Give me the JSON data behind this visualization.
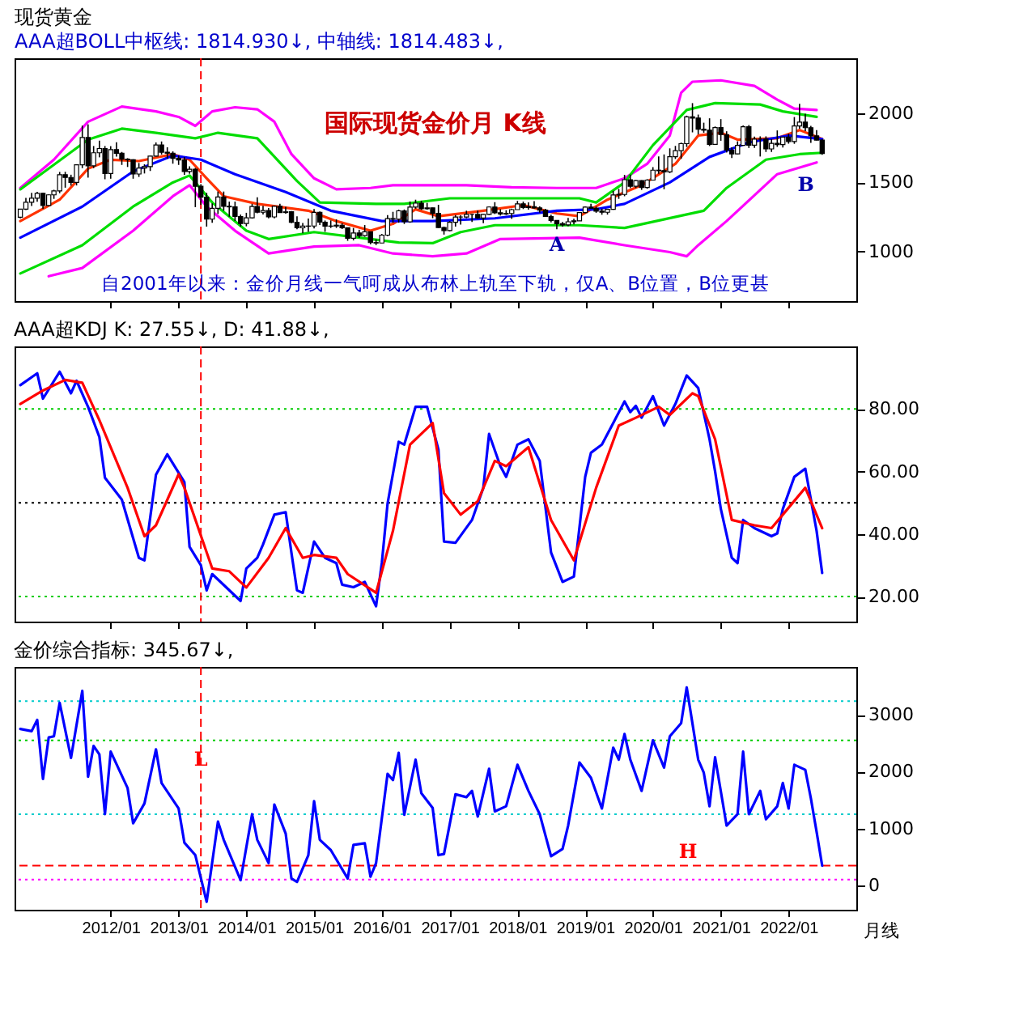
{
  "chart_data": [
    {
      "type": "candlestick",
      "title": "现货黄金",
      "subtitle": "AAA超BOLL中枢线: 1814.930↓, 中轴线: 1814.483↓,",
      "x": [
        "2010-09",
        "2010-10",
        "2010-11",
        "2010-12",
        "2011-01",
        "2011-02",
        "2011-03",
        "2011-04",
        "2011-05",
        "2011-06",
        "2011-07",
        "2011-08",
        "2011-09",
        "2011-10",
        "2011-11",
        "2011-12",
        "2012-01",
        "2012-02",
        "2012-03",
        "2012-04",
        "2012-05",
        "2012-06",
        "2012-07",
        "2012-08",
        "2012-09",
        "2012-10",
        "2012-11",
        "2012-12",
        "2013-01",
        "2013-02",
        "2013-03",
        "2013-04",
        "2013-05",
        "2013-06",
        "2013-07",
        "2013-08",
        "2013-09",
        "2013-10",
        "2013-11",
        "2013-12",
        "2014-01",
        "2014-02",
        "2014-03",
        "2014-04",
        "2014-05",
        "2014-06",
        "2014-07",
        "2014-08",
        "2014-09",
        "2014-10",
        "2014-11",
        "2014-12",
        "2015-01",
        "2015-02",
        "2015-03",
        "2015-04",
        "2015-05",
        "2015-06",
        "2015-07",
        "2015-08",
        "2015-09",
        "2015-10",
        "2015-11",
        "2015-12",
        "2016-01",
        "2016-02",
        "2016-03",
        "2016-04",
        "2016-05",
        "2016-06",
        "2016-07",
        "2016-08",
        "2016-09",
        "2016-10",
        "2016-11",
        "2016-12",
        "2017-01",
        "2017-02",
        "2017-03",
        "2017-04",
        "2017-05",
        "2017-06",
        "2017-07",
        "2017-08",
        "2017-09",
        "2017-10",
        "2017-11",
        "2017-12",
        "2018-01",
        "2018-02",
        "2018-03",
        "2018-04",
        "2018-05",
        "2018-06",
        "2018-07",
        "2018-08",
        "2018-09",
        "2018-10",
        "2018-11",
        "2018-12",
        "2019-01",
        "2019-02",
        "2019-03",
        "2019-04",
        "2019-05",
        "2019-06",
        "2019-07",
        "2019-08",
        "2019-09",
        "2019-10",
        "2019-11",
        "2019-12",
        "2020-01",
        "2020-02",
        "2020-03",
        "2020-04",
        "2020-05",
        "2020-06",
        "2020-07",
        "2020-08",
        "2020-09",
        "2020-10",
        "2020-11",
        "2020-12",
        "2021-01",
        "2021-02",
        "2021-03",
        "2021-04",
        "2021-05",
        "2021-06",
        "2021-07",
        "2021-08",
        "2021-09",
        "2021-10",
        "2021-11",
        "2021-12",
        "2022-01",
        "2022-02",
        "2022-03",
        "2022-04",
        "2022-05",
        "2022-06",
        "2022-07"
      ],
      "ohlc": [
        [
          1248,
          1308,
          1240,
          1307
        ],
        [
          1307,
          1388,
          1300,
          1357
        ],
        [
          1357,
          1424,
          1330,
          1386
        ],
        [
          1386,
          1432,
          1360,
          1421
        ],
        [
          1421,
          1424,
          1309,
          1333
        ],
        [
          1333,
          1413,
          1330,
          1410
        ],
        [
          1410,
          1447,
          1381,
          1439
        ],
        [
          1439,
          1576,
          1422,
          1556
        ],
        [
          1556,
          1577,
          1462,
          1536
        ],
        [
          1536,
          1556,
          1477,
          1500
        ],
        [
          1500,
          1632,
          1478,
          1628
        ],
        [
          1628,
          1912,
          1604,
          1826
        ],
        [
          1826,
          1921,
          1535,
          1620
        ],
        [
          1620,
          1764,
          1604,
          1715
        ],
        [
          1715,
          1803,
          1682,
          1746
        ],
        [
          1746,
          1764,
          1523,
          1565
        ],
        [
          1565,
          1763,
          1527,
          1738
        ],
        [
          1738,
          1791,
          1687,
          1711
        ],
        [
          1711,
          1721,
          1627,
          1669
        ],
        [
          1669,
          1676,
          1612,
          1664
        ],
        [
          1664,
          1668,
          1527,
          1561
        ],
        [
          1561,
          1641,
          1540,
          1604
        ],
        [
          1604,
          1632,
          1565,
          1615
        ],
        [
          1615,
          1692,
          1583,
          1691
        ],
        [
          1691,
          1790,
          1687,
          1772
        ],
        [
          1772,
          1797,
          1702,
          1719
        ],
        [
          1719,
          1755,
          1672,
          1712
        ],
        [
          1712,
          1725,
          1636,
          1675
        ],
        [
          1675,
          1695,
          1627,
          1663
        ],
        [
          1663,
          1684,
          1555,
          1579
        ],
        [
          1579,
          1617,
          1563,
          1596
        ],
        [
          1596,
          1605,
          1321,
          1472
        ],
        [
          1472,
          1488,
          1338,
          1393
        ],
        [
          1393,
          1424,
          1180,
          1234
        ],
        [
          1234,
          1348,
          1207,
          1313
        ],
        [
          1313,
          1434,
          1271,
          1395
        ],
        [
          1395,
          1434,
          1295,
          1327
        ],
        [
          1327,
          1361,
          1251,
          1323
        ],
        [
          1323,
          1361,
          1221,
          1253
        ],
        [
          1253,
          1267,
          1180,
          1202
        ],
        [
          1202,
          1280,
          1182,
          1244
        ],
        [
          1244,
          1345,
          1238,
          1326
        ],
        [
          1326,
          1392,
          1277,
          1284
        ],
        [
          1284,
          1331,
          1268,
          1296
        ],
        [
          1296,
          1315,
          1240,
          1250
        ],
        [
          1250,
          1332,
          1240,
          1327
        ],
        [
          1327,
          1345,
          1281,
          1282
        ],
        [
          1282,
          1323,
          1273,
          1287
        ],
        [
          1287,
          1293,
          1205,
          1211
        ],
        [
          1211,
          1255,
          1161,
          1171
        ],
        [
          1171,
          1206,
          1131,
          1183
        ],
        [
          1183,
          1239,
          1142,
          1184
        ],
        [
          1184,
          1307,
          1167,
          1283
        ],
        [
          1283,
          1289,
          1192,
          1212
        ],
        [
          1212,
          1224,
          1142,
          1183
        ],
        [
          1183,
          1225,
          1170,
          1184
        ],
        [
          1184,
          1232,
          1170,
          1190
        ],
        [
          1190,
          1205,
          1162,
          1172
        ],
        [
          1172,
          1174,
          1077,
          1095
        ],
        [
          1095,
          1170,
          1080,
          1134
        ],
        [
          1134,
          1157,
          1098,
          1114
        ],
        [
          1114,
          1191,
          1106,
          1142
        ],
        [
          1142,
          1142,
          1052,
          1064
        ],
        [
          1064,
          1088,
          1046,
          1061
        ],
        [
          1061,
          1127,
          1061,
          1118
        ],
        [
          1118,
          1263,
          1111,
          1238
        ],
        [
          1238,
          1287,
          1208,
          1234
        ],
        [
          1234,
          1303,
          1208,
          1294
        ],
        [
          1294,
          1304,
          1199,
          1215
        ],
        [
          1215,
          1362,
          1208,
          1321
        ],
        [
          1321,
          1375,
          1310,
          1350
        ],
        [
          1350,
          1367,
          1301,
          1309
        ],
        [
          1309,
          1352,
          1302,
          1316
        ],
        [
          1316,
          1317,
          1241,
          1276
        ],
        [
          1276,
          1338,
          1171,
          1173
        ],
        [
          1173,
          1180,
          1122,
          1151
        ],
        [
          1151,
          1220,
          1146,
          1211
        ],
        [
          1211,
          1264,
          1180,
          1249
        ],
        [
          1249,
          1262,
          1195,
          1249
        ],
        [
          1249,
          1295,
          1241,
          1268
        ],
        [
          1268,
          1270,
          1214,
          1268
        ],
        [
          1268,
          1296,
          1236,
          1242
        ],
        [
          1242,
          1272,
          1205,
          1269
        ],
        [
          1269,
          1326,
          1264,
          1322
        ],
        [
          1322,
          1357,
          1271,
          1280
        ],
        [
          1280,
          1306,
          1260,
          1271
        ],
        [
          1271,
          1299,
          1264,
          1275
        ],
        [
          1275,
          1310,
          1236,
          1303
        ],
        [
          1303,
          1366,
          1303,
          1345
        ],
        [
          1345,
          1361,
          1307,
          1318
        ],
        [
          1318,
          1356,
          1303,
          1325
        ],
        [
          1325,
          1365,
          1310,
          1315
        ],
        [
          1315,
          1326,
          1281,
          1299
        ],
        [
          1299,
          1309,
          1251,
          1253
        ],
        [
          1253,
          1266,
          1211,
          1224
        ],
        [
          1224,
          1224,
          1160,
          1201
        ],
        [
          1201,
          1214,
          1180,
          1192
        ],
        [
          1192,
          1243,
          1182,
          1215
        ],
        [
          1215,
          1237,
          1196,
          1222
        ],
        [
          1222,
          1284,
          1221,
          1282
        ],
        [
          1282,
          1326,
          1276,
          1321
        ],
        [
          1321,
          1346,
          1311,
          1313
        ],
        [
          1313,
          1325,
          1280,
          1292
        ],
        [
          1292,
          1310,
          1266,
          1284
        ],
        [
          1284,
          1306,
          1267,
          1305
        ],
        [
          1305,
          1439,
          1302,
          1409
        ],
        [
          1409,
          1453,
          1381,
          1413
        ],
        [
          1413,
          1555,
          1400,
          1520
        ],
        [
          1520,
          1557,
          1459,
          1472
        ],
        [
          1472,
          1517,
          1459,
          1513
        ],
        [
          1513,
          1516,
          1446,
          1464
        ],
        [
          1464,
          1524,
          1454,
          1517
        ],
        [
          1517,
          1611,
          1517,
          1589
        ],
        [
          1589,
          1689,
          1563,
          1585
        ],
        [
          1585,
          1703,
          1451,
          1577
        ],
        [
          1577,
          1747,
          1568,
          1686
        ],
        [
          1686,
          1765,
          1670,
          1730
        ],
        [
          1730,
          1789,
          1671,
          1781
        ],
        [
          1781,
          1984,
          1757,
          1975
        ],
        [
          1975,
          2075,
          1863,
          1967
        ],
        [
          1967,
          1992,
          1849,
          1886
        ],
        [
          1886,
          1933,
          1860,
          1879
        ],
        [
          1879,
          1965,
          1764,
          1776
        ],
        [
          1776,
          1906,
          1776,
          1898
        ],
        [
          1898,
          1959,
          1802,
          1847
        ],
        [
          1847,
          1871,
          1717,
          1734
        ],
        [
          1734,
          1755,
          1677,
          1707
        ],
        [
          1707,
          1798,
          1705,
          1769
        ],
        [
          1769,
          1913,
          1766,
          1903
        ],
        [
          1903,
          1916,
          1750,
          1770
        ],
        [
          1770,
          1832,
          1750,
          1814
        ],
        [
          1814,
          1834,
          1688,
          1814
        ],
        [
          1814,
          1834,
          1721,
          1743
        ],
        [
          1743,
          1814,
          1721,
          1783
        ],
        [
          1783,
          1877,
          1758,
          1774
        ],
        [
          1774,
          1831,
          1753,
          1829
        ],
        [
          1829,
          1853,
          1781,
          1797
        ],
        [
          1797,
          1974,
          1780,
          1909
        ],
        [
          1909,
          2070,
          1890,
          1937
        ],
        [
          1937,
          1998,
          1872,
          1897
        ],
        [
          1897,
          1910,
          1787,
          1837
        ],
        [
          1837,
          1879,
          1805,
          1807
        ],
        [
          1807,
          1814,
          1700,
          1710
        ]
      ],
      "color": "#000000",
      "series": [
        {
          "type": "line",
          "color": "#ff00ff",
          "x": [
            "2010-09",
            "2011-03",
            "2011-09",
            "2012-03",
            "2012-09",
            "2013-01",
            "2013-04",
            "2013-07",
            "2013-11",
            "2014-03",
            "2014-06",
            "2014-09",
            "2015-01",
            "2015-05",
            "2015-11",
            "2016-03",
            "2016-10",
            "2017-04",
            "2017-12",
            "2018-08",
            "2019-03",
            "2019-08",
            "2019-12",
            "2020-04",
            "2020-06",
            "2020-08",
            "2021-01",
            "2021-07",
            "2021-11",
            "2022-02",
            "2022-06"
          ],
          "values": [
            1460,
            1665,
            1940,
            2050,
            2015,
            1975,
            1910,
            2015,
            2045,
            2030,
            1940,
            1705,
            1530,
            1450,
            1460,
            1480,
            1480,
            1480,
            1465,
            1460,
            1460,
            1530,
            1635,
            1840,
            2150,
            2230,
            2240,
            2200,
            2100,
            2035,
            2025
          ]
        },
        {
          "type": "line",
          "color": "#00dd00",
          "x": [
            "2010-09",
            "2011-09",
            "2012-03",
            "2012-09",
            "2013-04",
            "2013-08",
            "2014-03",
            "2014-10",
            "2015-02",
            "2015-12",
            "2016-05",
            "2017-01",
            "2018-12",
            "2019-03",
            "2019-08",
            "2020-01",
            "2020-07",
            "2020-12",
            "2021-08",
            "2021-12",
            "2022-06"
          ],
          "values": [
            1450,
            1810,
            1890,
            1860,
            1820,
            1860,
            1820,
            1510,
            1355,
            1345,
            1345,
            1385,
            1385,
            1355,
            1500,
            1770,
            2025,
            2075,
            2065,
            2015,
            1975
          ]
        },
        {
          "type": "line",
          "color": "#ff3300",
          "x": [
            "2010-09",
            "2011-04",
            "2011-09",
            "2012-01",
            "2012-06",
            "2012-12",
            "2013-03",
            "2013-06",
            "2013-09",
            "2014-03",
            "2014-12",
            "2015-05",
            "2015-11",
            "2016-03",
            "2016-07",
            "2016-11",
            "2017-07",
            "2018-02",
            "2018-08",
            "2018-12",
            "2019-05",
            "2019-11",
            "2020-05",
            "2020-09",
            "2021-01",
            "2021-04",
            "2021-11",
            "2022-03",
            "2022-07"
          ],
          "values": [
            1220,
            1375,
            1600,
            1665,
            1655,
            1705,
            1665,
            1530,
            1400,
            1345,
            1295,
            1220,
            1150,
            1200,
            1305,
            1255,
            1295,
            1335,
            1275,
            1255,
            1375,
            1480,
            1635,
            1840,
            1860,
            1810,
            1820,
            1880,
            1814.93
          ]
        },
        {
          "type": "line",
          "color": "#0000ff",
          "x": [
            "2010-09",
            "2011-08",
            "2012-05",
            "2012-12",
            "2013-05",
            "2013-11",
            "2014-08",
            "2015-04",
            "2016-01",
            "2016-10",
            "2017-09",
            "2018-08",
            "2019-03",
            "2019-08",
            "2020-04",
            "2020-11",
            "2021-06",
            "2022-01",
            "2022-07"
          ],
          "values": [
            1100,
            1325,
            1580,
            1695,
            1665,
            1560,
            1430,
            1295,
            1220,
            1220,
            1240,
            1295,
            1305,
            1345,
            1500,
            1685,
            1790,
            1840,
            1814.48
          ]
        },
        {
          "type": "line",
          "color": "#00dd00",
          "x": [
            "2010-09",
            "2011-08",
            "2012-05",
            "2012-12",
            "2013-03",
            "2013-07",
            "2014-01",
            "2014-05",
            "2015-01",
            "2015-09",
            "2016-04",
            "2016-10",
            "2017-03",
            "2017-09",
            "2018-12",
            "2019-08",
            "2020-10",
            "2021-02",
            "2021-09",
            "2022-03",
            "2022-07"
          ],
          "values": [
            840,
            1045,
            1325,
            1500,
            1550,
            1355,
            1150,
            1090,
            1140,
            1100,
            1065,
            1060,
            1140,
            1190,
            1190,
            1170,
            1295,
            1460,
            1665,
            1705,
            1715
          ]
        },
        {
          "type": "line",
          "color": "#ff00ff",
          "x": [
            "2011-02",
            "2011-08",
            "2012-05",
            "2012-12",
            "2013-03",
            "2013-06",
            "2013-11",
            "2014-05",
            "2015-01",
            "2015-09",
            "2016-03",
            "2016-10",
            "2017-04",
            "2017-10",
            "2018-12",
            "2019-08",
            "2020-04",
            "2020-07",
            "2020-09",
            "2021-02",
            "2021-11",
            "2022-06"
          ],
          "values": [
            820,
            880,
            1150,
            1400,
            1480,
            1325,
            1150,
            985,
            1035,
            1045,
            985,
            965,
            985,
            1090,
            1100,
            1045,
            995,
            965,
            1045,
            1220,
            1560,
            1645
          ]
        }
      ],
      "xlim": [
        "2010-08",
        "2023-01"
      ],
      "xticks": [
        {
          "value": "2012-01",
          "label": null
        },
        {
          "value": "2013-01",
          "label": null
        },
        {
          "value": "2014-01",
          "label": null
        },
        {
          "value": "2015-01",
          "label": null
        },
        {
          "value": "2016-01",
          "label": null
        },
        {
          "value": "2017-01",
          "label": null
        },
        {
          "value": "2018-01",
          "label": null
        },
        {
          "value": "2019-01",
          "label": null
        },
        {
          "value": "2020-01",
          "label": null
        },
        {
          "value": "2021-01",
          "label": null
        },
        {
          "value": "2022-01",
          "label": null
        }
      ],
      "ylim": [
        640,
        2400
      ],
      "yticks": [
        1000,
        1500,
        2000
      ],
      "tick_labels": "y",
      "ref_lines": [
        {
          "axis": "x",
          "value": "2013-05",
          "color": "#ff0000",
          "line_style": "dashed"
        }
      ],
      "annotations": [
        "国际现货金价月 K线",
        "自2001年以来：金价月线一气呵成从布林上轨至下轨，仅A、B位置，B位更甚",
        {
          "text": "A",
          "x": "2018-08",
          "y": 1050
        },
        "B"
      ]
    },
    {
      "type": "line",
      "title": "AAA超KDJ K: 27.55↓, D: 41.88↓,",
      "series": [
        {
          "color": "#0000ff",
          "x": [
            "2010-09",
            "2010-12",
            "2011-01",
            "2011-04",
            "2011-06",
            "2011-07",
            "2011-09",
            "2011-11",
            "2011-12",
            "2012-03",
            "2012-06",
            "2012-07",
            "2012-09",
            "2012-11",
            "2013-02",
            "2013-03",
            "2013-05",
            "2013-06",
            "2013-07",
            "2013-12",
            "2014-01",
            "2014-03",
            "2014-04",
            "2014-06",
            "2014-08",
            "2014-09",
            "2014-10",
            "2014-11",
            "2015-01",
            "2015-03",
            "2015-05",
            "2015-06",
            "2015-08",
            "2015-10",
            "2015-12",
            "2016-01",
            "2016-02",
            "2016-04",
            "2016-05",
            "2016-07",
            "2016-09",
            "2016-11",
            "2016-12",
            "2017-02",
            "2017-05",
            "2017-06",
            "2017-07",
            "2017-08",
            "2017-10",
            "2017-11",
            "2018-01",
            "2018-03",
            "2018-05",
            "2018-07",
            "2018-09",
            "2018-11",
            "2019-01",
            "2019-02",
            "2019-04",
            "2019-06",
            "2019-08",
            "2019-09",
            "2019-10",
            "2019-11",
            "2020-01",
            "2020-03",
            "2020-05",
            "2020-07",
            "2020-09",
            "2020-11",
            "2020-12",
            "2021-01",
            "2021-03",
            "2021-04",
            "2021-05",
            "2021-07",
            "2021-10",
            "2021-11",
            "2021-12",
            "2022-02",
            "2022-04",
            "2022-06",
            "2022-07"
          ],
          "values": [
            87.6,
            91.4,
            83.3,
            91.9,
            85,
            89,
            80.7,
            71,
            58,
            51,
            32.4,
            31.6,
            59,
            65.5,
            56.6,
            35.9,
            30,
            22,
            27.2,
            18.6,
            29,
            32.4,
            36.7,
            46.2,
            47,
            34,
            22,
            21.2,
            37.6,
            32.4,
            30.7,
            23.8,
            23,
            24.7,
            16.9,
            30.7,
            49.7,
            69.5,
            68.6,
            80.7,
            80.7,
            67,
            37.6,
            37.2,
            44.5,
            49.7,
            54.8,
            72,
            61.7,
            58.3,
            68.6,
            70.3,
            63.4,
            34.1,
            24.7,
            26.4,
            58.3,
            66,
            68.6,
            75.5,
            82.4,
            79,
            81,
            77.2,
            84.1,
            74.7,
            81.6,
            90.7,
            86.7,
            70.3,
            60,
            48,
            32.4,
            30.7,
            44.5,
            41.9,
            39.3,
            40.2,
            48,
            58.3,
            60.9,
            41,
            27.55
          ]
        },
        {
          "color": "#ff0000",
          "x": [
            "2010-09",
            "2011-01",
            "2011-05",
            "2011-08",
            "2011-11",
            "2012-04",
            "2012-07",
            "2012-09",
            "2013-01",
            "2013-02",
            "2013-07",
            "2013-10",
            "2014-01",
            "2014-05",
            "2014-08",
            "2014-11",
            "2015-01",
            "2015-05",
            "2015-07",
            "2015-12",
            "2016-03",
            "2016-06",
            "2016-10",
            "2016-12",
            "2017-03",
            "2017-06",
            "2017-09",
            "2017-11",
            "2018-03",
            "2018-07",
            "2018-11",
            "2019-03",
            "2019-07",
            "2019-10",
            "2020-02",
            "2020-04",
            "2020-08",
            "2020-09",
            "2020-12",
            "2021-03",
            "2021-07",
            "2021-10",
            "2021-12",
            "2022-04",
            "2022-07"
          ],
          "values": [
            81.6,
            85.9,
            89.3,
            88.4,
            76.4,
            54.8,
            39.3,
            42.8,
            59.1,
            54.8,
            29,
            28.1,
            22.9,
            32.4,
            41.9,
            32.4,
            33.3,
            32.4,
            27.2,
            21.2,
            41,
            68.6,
            75.5,
            53.1,
            46.2,
            50.5,
            63.4,
            61.7,
            67.8,
            44.5,
            31.6,
            54.8,
            74.7,
            77.2,
            80.7,
            78.1,
            85,
            84.1,
            70.3,
            44.5,
            42.8,
            41.9,
            46.2,
            54.8,
            41.88
          ]
        }
      ],
      "xlim": [
        "2010-08",
        "2023-01"
      ],
      "xticks": [
        {
          "value": "2012-01",
          "label": null
        },
        {
          "value": "2013-01",
          "label": null
        },
        {
          "value": "2014-01",
          "label": null
        },
        {
          "value": "2015-01",
          "label": null
        },
        {
          "value": "2016-01",
          "label": null
        },
        {
          "value": "2017-01",
          "label": null
        },
        {
          "value": "2018-01",
          "label": null
        },
        {
          "value": "2019-01",
          "label": null
        },
        {
          "value": "2020-01",
          "label": null
        },
        {
          "value": "2021-01",
          "label": null
        },
        {
          "value": "2022-01",
          "label": null
        }
      ],
      "ylim": [
        12,
        100
      ],
      "yticks": [
        {
          "value": 20,
          "label": "20.00"
        },
        {
          "value": 40,
          "label": "40.00"
        },
        {
          "value": 60,
          "label": "60.00"
        },
        {
          "value": 80,
          "label": "80.00"
        }
      ],
      "tick_labels": "y",
      "ref_lines": [
        {
          "axis": "y",
          "value": 20,
          "color": "#00cc00",
          "line_style": "dotted"
        },
        {
          "axis": "y",
          "value": 50,
          "color": "#000000",
          "line_style": "dotted"
        },
        {
          "axis": "y",
          "value": 80,
          "color": "#00cc00",
          "line_style": "dotted"
        },
        {
          "axis": "x",
          "value": "2013-05",
          "color": "#ff0000",
          "line_style": "dashed"
        }
      ]
    },
    {
      "type": "line",
      "title": "金价综合指标: 345.67↓,",
      "xlabel": "月线",
      "series": [
        {
          "color": "#0000ff",
          "x": [
            "2010-09",
            "2010-11",
            "2010-12",
            "2011-01",
            "2011-02",
            "2011-03",
            "2011-04",
            "2011-06",
            "2011-08",
            "2011-09",
            "2011-10",
            "2011-11",
            "2011-12",
            "2012-01",
            "2012-04",
            "2012-05",
            "2012-07",
            "2012-09",
            "2012-10",
            "2013-01",
            "2013-02",
            "2013-04",
            "2013-06",
            "2013-08",
            "2013-09",
            "2013-12",
            "2014-02",
            "2014-03",
            "2014-05",
            "2014-06",
            "2014-08",
            "2014-09",
            "2014-10",
            "2014-12",
            "2015-01",
            "2015-02",
            "2015-04",
            "2015-07",
            "2015-08",
            "2015-10",
            "2015-11",
            "2015-12",
            "2016-02",
            "2016-03",
            "2016-04",
            "2016-05",
            "2016-07",
            "2016-08",
            "2016-10",
            "2016-11",
            "2016-12",
            "2017-02",
            "2017-04",
            "2017-05",
            "2017-06",
            "2017-08",
            "2017-09",
            "2017-11",
            "2018-01",
            "2018-03",
            "2018-05",
            "2018-07",
            "2018-09",
            "2018-10",
            "2018-12",
            "2019-02",
            "2019-04",
            "2019-06",
            "2019-07",
            "2019-08",
            "2019-09",
            "2019-11",
            "2020-01",
            "2020-03",
            "2020-04",
            "2020-06",
            "2020-07",
            "2020-09",
            "2020-10",
            "2020-11",
            "2020-12",
            "2021-02",
            "2021-04",
            "2021-05",
            "2021-06",
            "2021-08",
            "2021-09",
            "2021-11",
            "2021-12",
            "2022-01",
            "2022-02",
            "2022-04",
            "2022-05",
            "2022-06",
            "2022-07"
          ],
          "values": [
            2750,
            2710,
            2910,
            1870,
            2600,
            2620,
            3210,
            2240,
            3420,
            1910,
            2450,
            2300,
            1250,
            2350,
            1710,
            1090,
            1440,
            2390,
            1800,
            1350,
            750,
            530,
            -290,
            1120,
            800,
            90,
            1250,
            800,
            390,
            1420,
            910,
            120,
            60,
            530,
            1480,
            800,
            620,
            120,
            710,
            740,
            150,
            390,
            1960,
            1850,
            2330,
            1240,
            2210,
            1620,
            1360,
            530,
            550,
            1600,
            1550,
            1660,
            1210,
            2050,
            1300,
            1390,
            2120,
            1660,
            1250,
            510,
            640,
            1050,
            2160,
            1890,
            1350,
            2420,
            2210,
            2660,
            2210,
            1660,
            2550,
            2070,
            2620,
            2850,
            3480,
            2210,
            1980,
            1390,
            2250,
            1050,
            1250,
            2350,
            1250,
            1660,
            1160,
            1390,
            1800,
            1350,
            2120,
            2030,
            1530,
            940,
            345.67
          ]
        }
      ],
      "xlim": [
        "2010-08",
        "2023-01"
      ],
      "xticks": [
        {
          "value": "2012-01",
          "label": "2012/01"
        },
        {
          "value": "2013-01",
          "label": "2013/01"
        },
        {
          "value": "2014-01",
          "label": "2014/01"
        },
        {
          "value": "2015-01",
          "label": "2015/01"
        },
        {
          "value": "2016-01",
          "label": "2016/01"
        },
        {
          "value": "2017-01",
          "label": "2017/01"
        },
        {
          "value": "2018-01",
          "label": "2018/01"
        },
        {
          "value": "2019-01",
          "label": "2019/01"
        },
        {
          "value": "2020-01",
          "label": "2020/01"
        },
        {
          "value": "2021-01",
          "label": "2021/01"
        },
        {
          "value": "2022-01",
          "label": "2022/01"
        }
      ],
      "ylim": [
        -430,
        3840
      ],
      "yticks": [
        0,
        1000,
        2000,
        3000
      ],
      "ref_lines": [
        {
          "axis": "y",
          "value": 3240,
          "color": "#00cccc",
          "line_style": "dotted"
        },
        {
          "axis": "y",
          "value": 2550,
          "color": "#00cc00",
          "line_style": "dotted"
        },
        {
          "axis": "y",
          "value": 1250,
          "color": "#00cccc",
          "line_style": "dotted"
        },
        {
          "axis": "y",
          "value": 100,
          "color": "#ff00ff",
          "line_style": "dotted"
        },
        {
          "axis": "y",
          "value": 345.67,
          "color": "#ff0000",
          "line_style": "dashed",
          "label": "H"
        },
        {
          "axis": "x",
          "value": "2013-05",
          "color": "#ff0000",
          "line_style": "dashed",
          "label": "L"
        }
      ]
    }
  ]
}
